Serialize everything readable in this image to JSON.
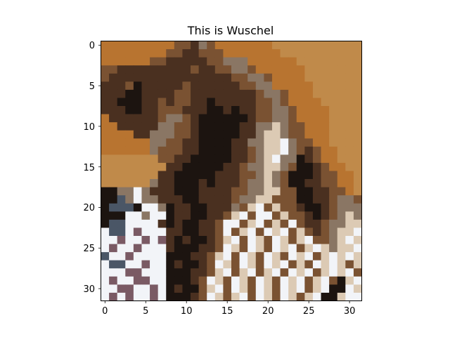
{
  "figure": {
    "title": "This is Wuschel",
    "image_shape": [
      32,
      32
    ],
    "xticks": [
      "0",
      "5",
      "10",
      "15",
      "20",
      "25",
      "30"
    ],
    "yticks": [
      "0",
      "5",
      "10",
      "15",
      "20",
      "25",
      "30"
    ]
  },
  "palette": {
    "tan": "#c08a4a",
    "orange": "#b87430",
    "dark_brown": "#4a3020",
    "near_black": "#1c1410",
    "mid_brown": "#7a5232",
    "grey_brown": "#8a7664",
    "white": "#f2f4f8",
    "mauve": "#7a5a64",
    "cream": "#dccab4",
    "slate": "#4a5666"
  },
  "image_rows": [
    "OOOOOOOOOMMDGMOOOOOOOTTTTTTTTTTT",
    "OOOOOOOOMMDDMMMOOOOOOOTTTTTTTTTT",
    "OOOOOOMMDDDDDMMGGGOOOOOOTTTTTTTT",
    "MMDDDDDDDDDMDDMMGGMOOOOOOTTTTTTT",
    "MDDDDDDDDDDDDDDDMMGGMOOOOTTTTTTT",
    "DDDMKDDDDDMDDDDDDMMGGOOOOOTTTTTT",
    "DDDKKDDDDMMDDDDDDDDMGGMOOOTTTTTT",
    "DDKKKDDMDMMDDKDDDDDMMGMOOOOTTTTT",
    "DDDKKDDMMMDDDKKDKDDMMGGMOOOOTTTT",
    "ODDDDDDMGGMDKKKKKKDMMGGMOOOOTTTT",
    "OODDDDDGGMMDKKKKKDDGGCGMMOOOTTTT",
    "OOOODDGGGMMDKKKKKDDGCCGMMOOOTTTT",
    "OOOOOOGGMMDDKKKKDDGGCCWGMMOOTTTT",
    "OOOOOOGMMMDDKKKKDDMGCCWGMDMOOTTT",
    "TTTTTTTMMDDKKKKKDDMGCWGGKDMOOTTT",
    "TTTTTTTTDDKKKKKDDMGGCCGMKKDMOOTT",
    "TTTTTTTDDKKKKKDDDMMGCGMKKKDMMOOT",
    "TTTTTTGDDKKKDKDDDMGGCGMKKDDMMOOT",
    "KKGGWGDDDKKKDDDDMMGGCCMMKKDDMMOT",
    "KKSGWGGDDDKKDDDDMGGCCMMMKKDDMGGM",
    "KSSSKWWGKDDKKDDDGMCWMCMMDKKDMGGG",
    "KKKWWGWWKDDKKDDMCWMWWMCMMDKDMGCG",
    "KSSWWWWDKDKKDDMWWMCWMCMWMDDMGGCC",
    "WSSWAWWWDDKKDDMWMCWMWCWMCMDMGCCW",
    "WWAWWAWADKDKKDMCWMWCMWCMCWMMGCWC",
    "WAWWAWWWDKKKDDMWCMWCMWCWMCWCGCCW",
    "SWWAWWWWKKKDDMCWMWCMWCMWCWMCWCWC",
    "WSSWWAWWKDKKDMWCMWCMWCWMCMWCWCMC",
    "WWWAAWWWKKKDDMCWMCWMCWMWCWMCWCWM",
    "WAWWAAWWKKKDMWCMWCMWCMWCWMCWMKCW",
    "WWAAWWAWKDKKMCWMWCMWCMWCWMCWKKWC",
    "WAWAWWAWKKKDMWCMCWMWCMWCMCWKKCWW"
  ],
  "image_legend": {
    "T": "tan",
    "O": "orange",
    "D": "dark_brown",
    "K": "near_black",
    "M": "mid_brown",
    "G": "grey_brown",
    "W": "white",
    "A": "mauve",
    "C": "cream",
    "S": "slate"
  }
}
